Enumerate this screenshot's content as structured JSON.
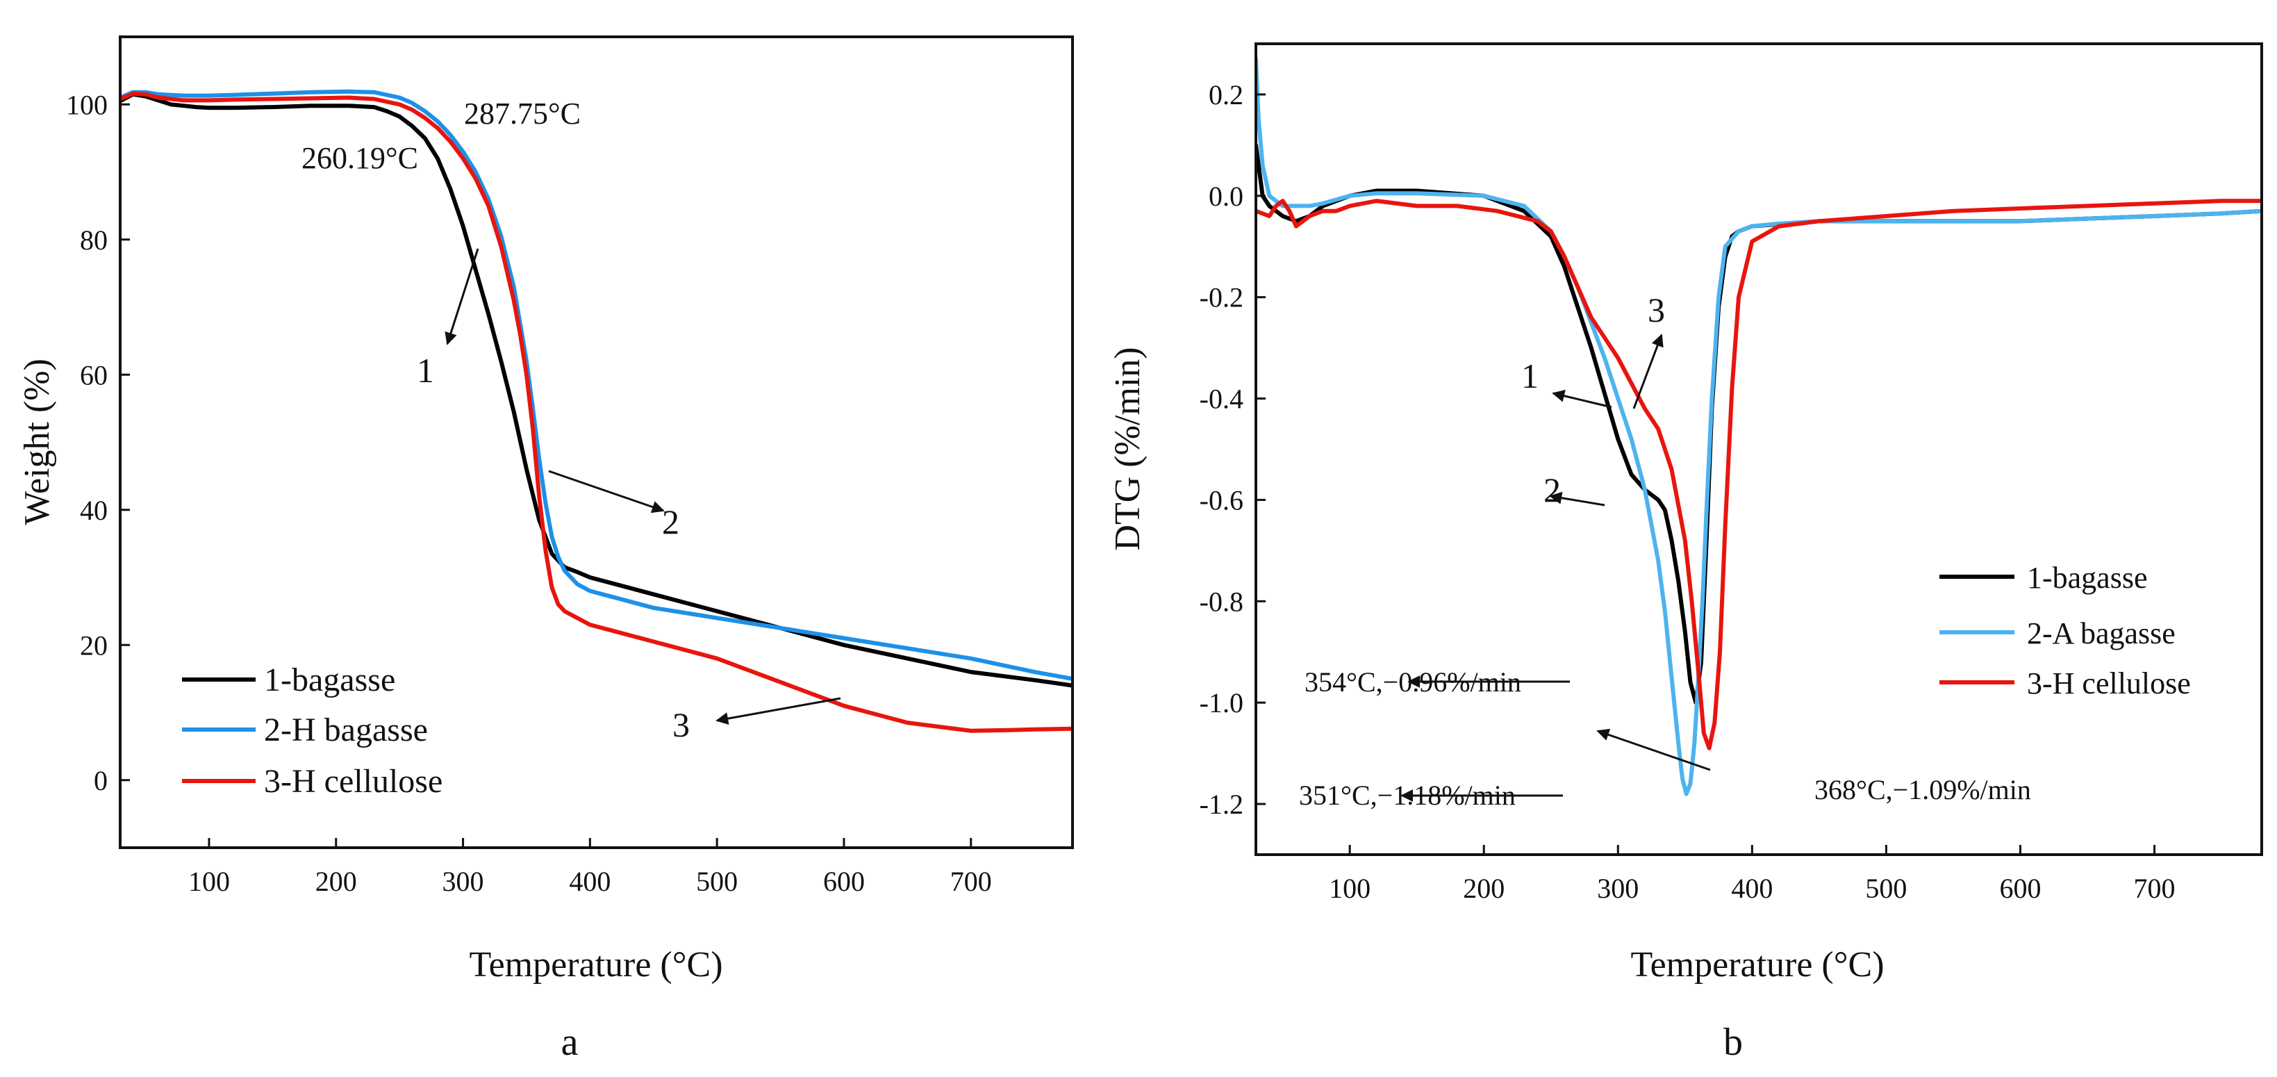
{
  "chart_data": [
    {
      "id": "a",
      "type": "line",
      "panel_label": "a",
      "xlabel": "Temperature (°C)",
      "ylabel": "Weight (%)",
      "xlim": [
        30,
        780
      ],
      "ylim": [
        -10,
        110
      ],
      "xticks": [
        100,
        200,
        300,
        400,
        500,
        600,
        700
      ],
      "yticks": [
        0,
        20,
        40,
        60,
        80,
        100
      ],
      "legend": [
        "1-bagasse",
        "2-H bagasse",
        "3-H cellulose"
      ],
      "legend_position": "bottom-left",
      "series": [
        {
          "name": "1-bagasse",
          "color": "#000000",
          "x": [
            30,
            40,
            50,
            60,
            70,
            80,
            90,
            100,
            120,
            150,
            180,
            210,
            230,
            240,
            250,
            260,
            270,
            280,
            290,
            300,
            310,
            320,
            330,
            340,
            350,
            360,
            370,
            380,
            390,
            400,
            420,
            450,
            500,
            550,
            600,
            650,
            700,
            750,
            780
          ],
          "y": [
            100.5,
            101.5,
            101.2,
            100.6,
            100.0,
            99.8,
            99.6,
            99.5,
            99.5,
            99.6,
            99.8,
            99.8,
            99.6,
            99.0,
            98.2,
            96.8,
            95.0,
            92.0,
            87.5,
            82.0,
            75.5,
            69.0,
            62.0,
            54.5,
            46.0,
            38.5,
            33.5,
            31.5,
            30.8,
            30.0,
            29.0,
            27.5,
            25.0,
            22.5,
            20.0,
            18.0,
            16.0,
            14.8,
            14.0
          ]
        },
        {
          "name": "2-H bagasse",
          "color": "#1e90e8",
          "x": [
            30,
            40,
            50,
            60,
            80,
            100,
            120,
            150,
            180,
            210,
            230,
            250,
            260,
            270,
            280,
            290,
            300,
            310,
            320,
            330,
            340,
            350,
            355,
            360,
            365,
            370,
            375,
            380,
            390,
            400,
            420,
            450,
            500,
            550,
            600,
            650,
            700,
            750,
            780
          ],
          "y": [
            101.0,
            101.8,
            101.8,
            101.5,
            101.3,
            101.3,
            101.4,
            101.6,
            101.8,
            101.9,
            101.8,
            101.0,
            100.2,
            99.0,
            97.5,
            95.5,
            93.0,
            90.0,
            86.0,
            80.5,
            73.0,
            62.0,
            55.0,
            47.5,
            41.0,
            36.0,
            33.0,
            31.0,
            29.0,
            28.0,
            27.0,
            25.5,
            24.0,
            22.5,
            21.0,
            19.5,
            18.0,
            16.0,
            15.0
          ]
        },
        {
          "name": "3-H cellulose",
          "color": "#e8150f",
          "x": [
            30,
            40,
            50,
            60,
            80,
            100,
            120,
            150,
            180,
            210,
            230,
            250,
            260,
            270,
            280,
            290,
            300,
            310,
            320,
            330,
            340,
            345,
            350,
            355,
            360,
            365,
            370,
            375,
            380,
            390,
            400,
            420,
            450,
            500,
            550,
            600,
            650,
            700,
            730,
            750,
            780
          ],
          "y": [
            100.8,
            101.6,
            101.5,
            101.0,
            100.6,
            100.6,
            100.7,
            100.8,
            100.9,
            101.0,
            100.8,
            100.0,
            99.2,
            98.0,
            96.5,
            94.5,
            92.0,
            89.0,
            85.0,
            79.0,
            71.0,
            66.0,
            60.0,
            52.0,
            42.0,
            34.0,
            28.5,
            26.0,
            25.0,
            24.0,
            23.0,
            22.0,
            20.5,
            18.0,
            14.5,
            11.0,
            8.5,
            7.3,
            7.4,
            7.5,
            7.6
          ]
        }
      ],
      "annotations": [
        {
          "text": "287.75°C"
        },
        {
          "text": "260.19°C"
        },
        {
          "text": "1"
        },
        {
          "text": "2"
        },
        {
          "text": "3"
        }
      ]
    },
    {
      "id": "b",
      "type": "line",
      "panel_label": "b",
      "xlabel": "Temperature (°C)",
      "ylabel": "DTG (%/min)",
      "xlim": [
        30,
        780
      ],
      "ylim": [
        -1.3,
        0.3
      ],
      "xticks": [
        100,
        200,
        300,
        400,
        500,
        600,
        700
      ],
      "yticks": [
        0.2,
        0.0,
        -0.2,
        -0.4,
        -0.6,
        -0.8,
        -1.0,
        -1.2
      ],
      "ytick_labels": [
        "0.2",
        "0.0",
        "-0.2",
        "-0.4",
        "-0.6",
        "-0.8",
        "-1.0",
        "-1.2"
      ],
      "legend": [
        "1-bagasse",
        "2-A bagasse",
        "3-H cellulose"
      ],
      "legend_position": "right",
      "series": [
        {
          "name": "1-bagasse",
          "color": "#000000",
          "x": [
            30,
            35,
            40,
            50,
            60,
            70,
            80,
            100,
            120,
            150,
            200,
            230,
            250,
            260,
            270,
            280,
            290,
            300,
            310,
            320,
            325,
            330,
            335,
            340,
            345,
            350,
            354,
            358,
            362,
            366,
            370,
            375,
            380,
            385,
            390,
            400,
            450,
            500,
            550,
            600,
            650,
            700,
            750,
            780
          ],
          "y": [
            0.1,
            0.0,
            -0.02,
            -0.04,
            -0.05,
            -0.04,
            -0.02,
            0.0,
            0.01,
            0.01,
            0.0,
            -0.03,
            -0.08,
            -0.14,
            -0.22,
            -0.3,
            -0.39,
            -0.48,
            -0.55,
            -0.58,
            -0.59,
            -0.6,
            -0.62,
            -0.68,
            -0.76,
            -0.86,
            -0.96,
            -1.0,
            -0.92,
            -0.68,
            -0.42,
            -0.22,
            -0.12,
            -0.08,
            -0.07,
            -0.06,
            -0.05,
            -0.05,
            -0.05,
            -0.05,
            -0.045,
            -0.04,
            -0.035,
            -0.03
          ]
        },
        {
          "name": "2-A bagasse",
          "color": "#4db3ee",
          "x": [
            30,
            32,
            35,
            40,
            50,
            60,
            70,
            80,
            100,
            120,
            150,
            200,
            230,
            250,
            260,
            270,
            280,
            290,
            300,
            310,
            320,
            330,
            335,
            340,
            345,
            348,
            351,
            354,
            357,
            360,
            363,
            366,
            370,
            375,
            380,
            390,
            400,
            420,
            450,
            500,
            550,
            600,
            650,
            700,
            750,
            780
          ],
          "y": [
            0.27,
            0.15,
            0.06,
            0.0,
            -0.02,
            -0.02,
            -0.02,
            -0.015,
            0.0,
            0.005,
            0.005,
            0.0,
            -0.02,
            -0.07,
            -0.12,
            -0.18,
            -0.25,
            -0.32,
            -0.4,
            -0.48,
            -0.58,
            -0.72,
            -0.82,
            -0.95,
            -1.08,
            -1.15,
            -1.18,
            -1.16,
            -1.08,
            -0.95,
            -0.8,
            -0.62,
            -0.4,
            -0.2,
            -0.1,
            -0.07,
            -0.06,
            -0.055,
            -0.05,
            -0.05,
            -0.05,
            -0.05,
            -0.045,
            -0.04,
            -0.035,
            -0.03
          ]
        },
        {
          "name": "3-H cellulose",
          "color": "#e8150f",
          "x": [
            30,
            40,
            45,
            50,
            55,
            60,
            65,
            70,
            80,
            90,
            100,
            120,
            150,
            180,
            210,
            240,
            250,
            260,
            270,
            280,
            290,
            300,
            310,
            320,
            330,
            340,
            350,
            355,
            360,
            364,
            368,
            372,
            376,
            380,
            385,
            390,
            400,
            420,
            450,
            500,
            550,
            600,
            650,
            700,
            750,
            780
          ],
          "y": [
            -0.03,
            -0.04,
            -0.02,
            -0.01,
            -0.03,
            -0.06,
            -0.05,
            -0.04,
            -0.03,
            -0.03,
            -0.02,
            -0.01,
            -0.02,
            -0.02,
            -0.03,
            -0.05,
            -0.07,
            -0.12,
            -0.18,
            -0.24,
            -0.28,
            -0.32,
            -0.37,
            -0.42,
            -0.46,
            -0.54,
            -0.68,
            -0.8,
            -0.94,
            -1.06,
            -1.09,
            -1.04,
            -0.9,
            -0.65,
            -0.38,
            -0.2,
            -0.09,
            -0.06,
            -0.05,
            -0.04,
            -0.03,
            -0.025,
            -0.02,
            -0.015,
            -0.01,
            -0.01
          ]
        }
      ],
      "annotations": [
        {
          "text": "1"
        },
        {
          "text": "2"
        },
        {
          "text": "3"
        },
        {
          "text": "354°C,−0.96%/min"
        },
        {
          "text": "351°C,−1.18%/min"
        },
        {
          "text": "368°C,−1.09%/min"
        }
      ]
    }
  ]
}
